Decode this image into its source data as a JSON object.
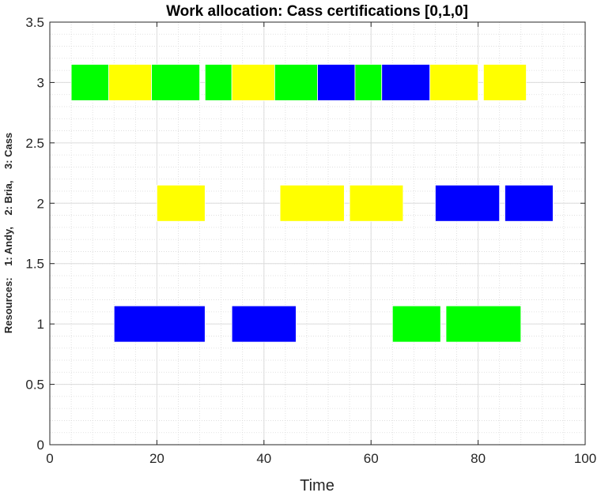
{
  "chart_data": {
    "type": "bar",
    "subtype": "gantt",
    "title": "Work allocation: Cass certifications [0,1,0]",
    "xlabel": "Time",
    "ylabel": "Resources:    1: Andy,    2: Bria,    3: Cass",
    "xlim": [
      0,
      100
    ],
    "ylim": [
      0,
      3.5
    ],
    "xticks": [
      0,
      20,
      40,
      60,
      80,
      100
    ],
    "xtick_labels": [
      "0",
      "20",
      "40",
      "60",
      "80",
      "100"
    ],
    "yticks": [
      0,
      0.5,
      1,
      1.5,
      2,
      2.5,
      3,
      3.5
    ],
    "ytick_labels": [
      "0",
      "0.5",
      "1",
      "1.5",
      "2",
      "2.5",
      "3",
      "3.5"
    ],
    "grid": true,
    "minor_grid": true,
    "bar_half_height": 0.15,
    "colors": {
      "green": "#00ff00",
      "yellow": "#ffff00",
      "blue": "#0000ff"
    },
    "tasks": [
      {
        "resource": 3,
        "start": 4,
        "end": 11,
        "color": "green"
      },
      {
        "resource": 3,
        "start": 11,
        "end": 19,
        "color": "yellow"
      },
      {
        "resource": 3,
        "start": 19,
        "end": 28,
        "color": "green"
      },
      {
        "resource": 3,
        "start": 29,
        "end": 34,
        "color": "green"
      },
      {
        "resource": 3,
        "start": 34,
        "end": 42,
        "color": "yellow"
      },
      {
        "resource": 3,
        "start": 42,
        "end": 50,
        "color": "green"
      },
      {
        "resource": 3,
        "start": 50,
        "end": 57,
        "color": "blue"
      },
      {
        "resource": 3,
        "start": 57,
        "end": 62,
        "color": "green"
      },
      {
        "resource": 3,
        "start": 62,
        "end": 71,
        "color": "blue"
      },
      {
        "resource": 3,
        "start": 71,
        "end": 80,
        "color": "yellow"
      },
      {
        "resource": 3,
        "start": 81,
        "end": 89,
        "color": "yellow"
      },
      {
        "resource": 2,
        "start": 20,
        "end": 29,
        "color": "yellow"
      },
      {
        "resource": 2,
        "start": 43,
        "end": 55,
        "color": "yellow"
      },
      {
        "resource": 2,
        "start": 56,
        "end": 66,
        "color": "yellow"
      },
      {
        "resource": 2,
        "start": 72,
        "end": 84,
        "color": "blue"
      },
      {
        "resource": 2,
        "start": 85,
        "end": 94,
        "color": "blue"
      },
      {
        "resource": 1,
        "start": 12,
        "end": 29,
        "color": "blue"
      },
      {
        "resource": 1,
        "start": 34,
        "end": 46,
        "color": "blue"
      },
      {
        "resource": 1,
        "start": 64,
        "end": 73,
        "color": "green"
      },
      {
        "resource": 1,
        "start": 74,
        "end": 88,
        "color": "green"
      }
    ]
  }
}
